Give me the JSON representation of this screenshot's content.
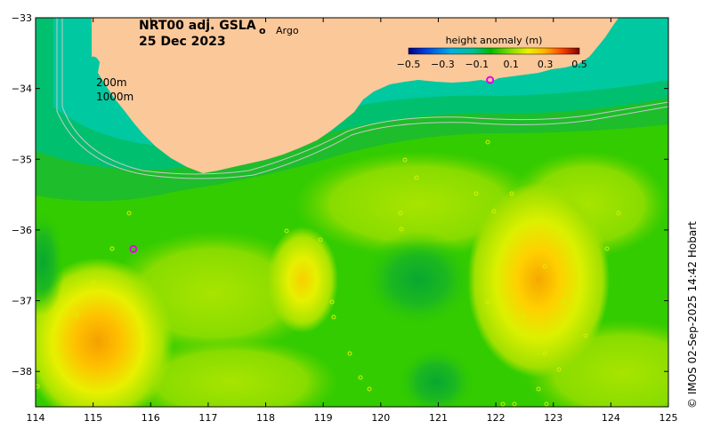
{
  "title": {
    "product": "NRT00 adj. GSLA",
    "date": "25 Dec 2023"
  },
  "legend": {
    "argo_symbol": "o",
    "argo_label": "Argo",
    "argo_color": "#e800e8"
  },
  "colorbar": {
    "title": "height anomaly (m)",
    "ticks": [
      "−0.5",
      "−0.3",
      "−0.1",
      "0.1",
      "0.3",
      "0.5"
    ],
    "colors": [
      "#000080",
      "#0033cc",
      "#0080ff",
      "#00c8c8",
      "#00c080",
      "#00b800",
      "#44cc00",
      "#99e000",
      "#e6f000",
      "#ffc800",
      "#ff8000",
      "#cc2000",
      "#800000"
    ]
  },
  "isobaths": {
    "shallow_label": "200m",
    "deep_label": "1000m"
  },
  "axes": {
    "x_ticks": [
      "114",
      "115",
      "116",
      "117",
      "118",
      "119",
      "120",
      "121",
      "122",
      "123",
      "124",
      "125"
    ],
    "y_ticks": [
      "−33",
      "−34",
      "−35",
      "−36",
      "−37",
      "−38"
    ],
    "lon_range": [
      114,
      125
    ],
    "lat_range": [
      -38.5,
      -33
    ]
  },
  "map_colors": {
    "land": "#fbc89a",
    "ocean_base": "#33cc00"
  },
  "argo_floats": [
    {
      "lon": 115.7,
      "lat": -36.27
    },
    {
      "lon": 121.9,
      "lat": -33.88
    }
  ],
  "credit": "© IMOS 02-Sep-2025 14:42 Hobart"
}
